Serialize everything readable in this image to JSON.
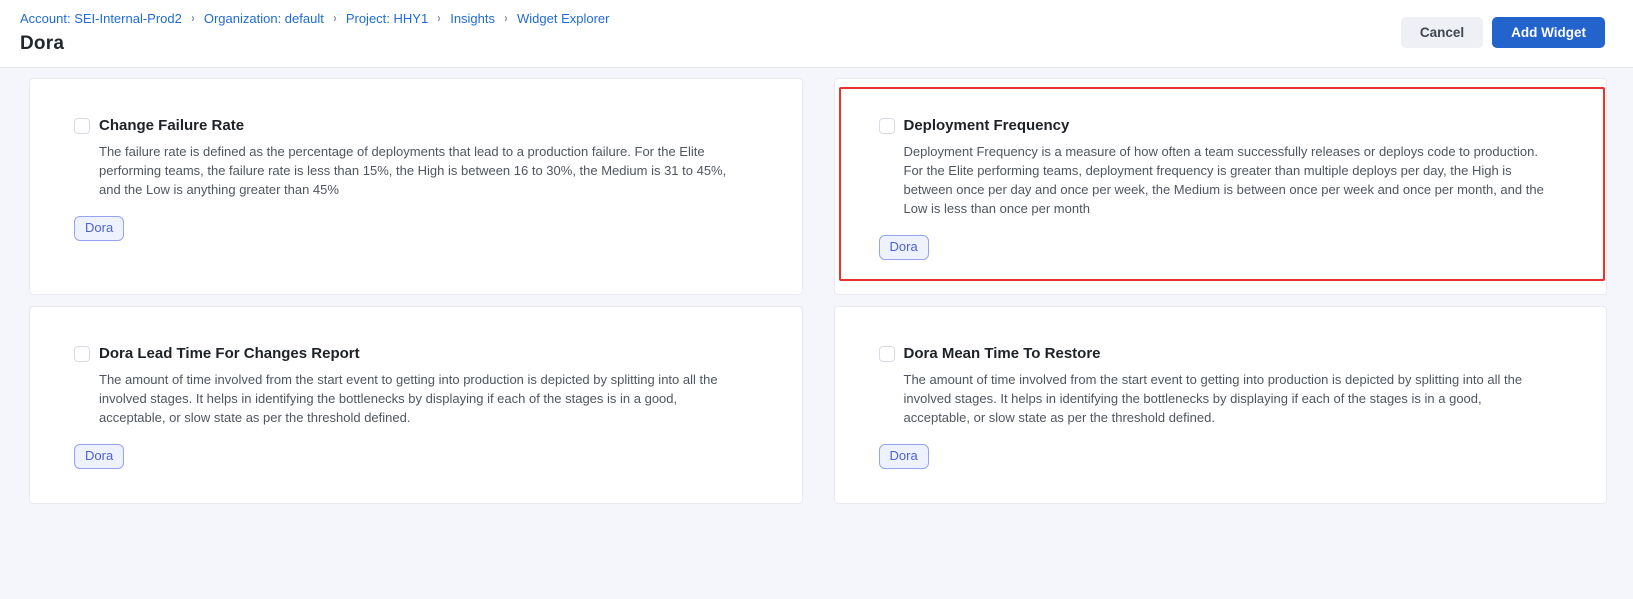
{
  "header": {
    "breadcrumbs": [
      "Account: SEI-Internal-Prod2",
      "Organization: default",
      "Project: HHY1",
      "Insights",
      "Widget Explorer"
    ],
    "separator": "›",
    "title": "Dora",
    "cancel_label": "Cancel",
    "add_widget_label": "Add Widget"
  },
  "cards": [
    {
      "title": "Change Failure Rate",
      "description": "The failure rate is defined as the percentage of deployments that lead to a production failure. For the Elite performing teams, the failure rate is less than 15%, the High is between 16 to 30%, the Medium is 31 to 45%, and the Low is anything greater than 45%",
      "tag": "Dora",
      "checked": false,
      "highlighted": false
    },
    {
      "title": "Deployment Frequency",
      "description": "Deployment Frequency is a measure of how often a team successfully releases or deploys code to production. For the Elite performing teams, deployment frequency is greater than multiple deploys per day, the High is between once per day and once per week, the Medium is between once per week and once per month, and the Low is less than once per month",
      "tag": "Dora",
      "checked": false,
      "highlighted": true
    },
    {
      "title": "Dora Lead Time For Changes Report",
      "description": "The amount of time involved from the start event to getting into production is depicted by splitting into all the involved stages. It helps in identifying the bottlenecks by displaying if each of the stages is in a good, acceptable, or slow state as per the threshold defined.",
      "tag": "Dora",
      "checked": false,
      "highlighted": false
    },
    {
      "title": "Dora Mean Time To Restore",
      "description": "The amount of time involved from the start event to getting into production is depicted by splitting into all the involved stages. It helps in identifying the bottlenecks by displaying if each of the stages is in a good, acceptable, or slow state as per the threshold defined.",
      "tag": "Dora",
      "checked": false,
      "highlighted": false
    }
  ],
  "colors": {
    "link_blue": "#1f6bd8",
    "primary_button_blue": "#2263cc",
    "highlight_red": "#e6332d",
    "tag_border": "#94a3f4",
    "tag_text": "#4d60d7",
    "tag_background": "#eef2fe",
    "page_background": "#f4f6fb"
  }
}
